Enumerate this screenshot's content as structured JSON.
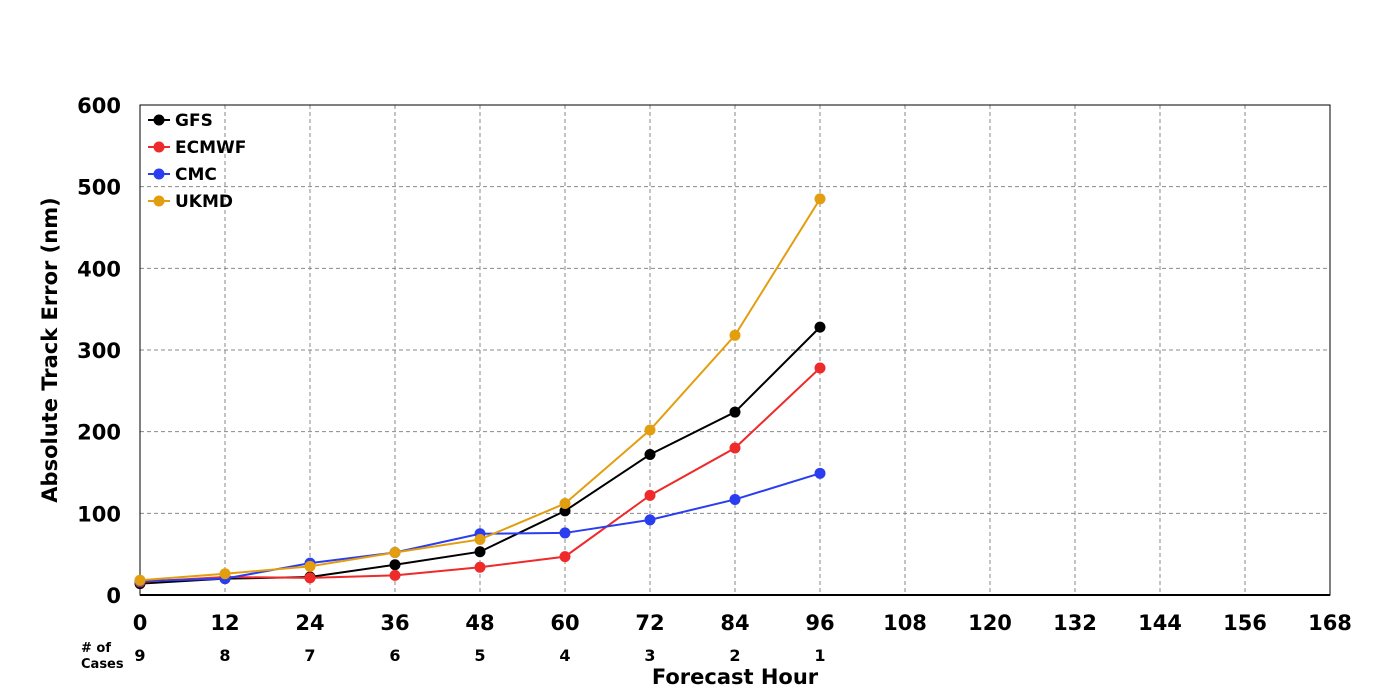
{
  "chart_data": {
    "type": "line",
    "xlabel": "Forecast Hour",
    "ylabel": "Absolute Track Error (nm)",
    "xlim": [
      0,
      168
    ],
    "ylim": [
      0,
      600
    ],
    "x_ticks": [
      0,
      12,
      24,
      36,
      48,
      60,
      72,
      84,
      96,
      108,
      120,
      132,
      144,
      156,
      168
    ],
    "y_ticks": [
      0,
      100,
      200,
      300,
      400,
      500,
      600
    ],
    "grid": true,
    "legend_position": "top-left",
    "cases_label": [
      "# of",
      "Cases"
    ],
    "cases": [
      {
        "x": 0,
        "n": "9"
      },
      {
        "x": 12,
        "n": "8"
      },
      {
        "x": 24,
        "n": "7"
      },
      {
        "x": 36,
        "n": "6"
      },
      {
        "x": 48,
        "n": "5"
      },
      {
        "x": 60,
        "n": "4"
      },
      {
        "x": 72,
        "n": "3"
      },
      {
        "x": 84,
        "n": "2"
      },
      {
        "x": 96,
        "n": "1"
      }
    ],
    "x": [
      0,
      12,
      24,
      36,
      48,
      60,
      72,
      84,
      96
    ],
    "series": [
      {
        "name": "GFS",
        "color": "#000000",
        "values": [
          14,
          20,
          22,
          37,
          53,
          103,
          172,
          224,
          328
        ]
      },
      {
        "name": "ECMWF",
        "color": "#ee2a2a",
        "values": [
          16,
          22,
          21,
          24,
          34,
          47,
          122,
          180,
          278
        ]
      },
      {
        "name": "CMC",
        "color": "#2a3ef0",
        "values": [
          17,
          20,
          39,
          52,
          75,
          76,
          92,
          117,
          149
        ]
      },
      {
        "name": "UKMD",
        "color": "#e39e10",
        "values": [
          18,
          26,
          35,
          52,
          68,
          112,
          202,
          318,
          485
        ]
      }
    ]
  }
}
